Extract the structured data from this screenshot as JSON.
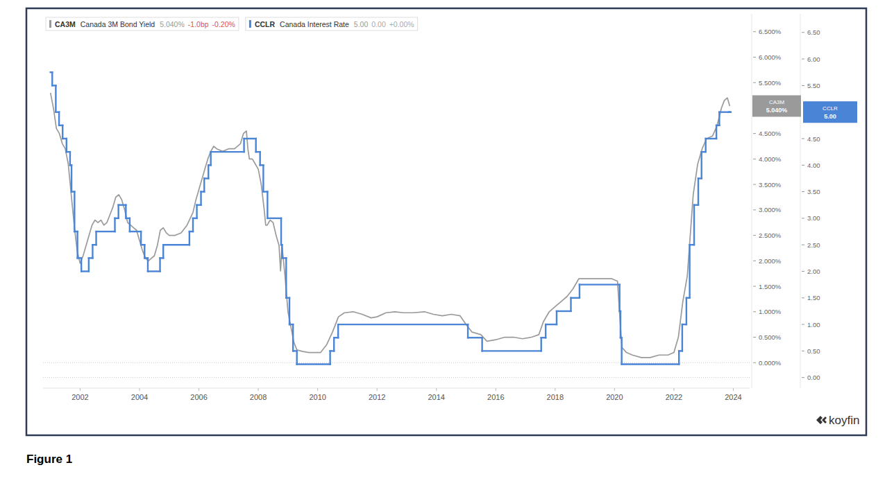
{
  "chart_data": {
    "type": "line",
    "caption": "Figure 1",
    "watermark": "koyfin",
    "legend": "upper left",
    "grid": false,
    "xlim": [
      2000.75,
      2024.55
    ],
    "xticks": [
      2002,
      2004,
      2006,
      2008,
      2010,
      2012,
      2014,
      2016,
      2018,
      2020,
      2022,
      2024
    ],
    "ylim": [
      -0.5,
      6.85
    ],
    "yticks": [
      {
        "value": 0,
        "label": "0.000%"
      },
      {
        "value": 0.5,
        "label": "0.500%"
      },
      {
        "value": 1,
        "label": "1.000%"
      },
      {
        "value": 1.5,
        "label": "1.500%"
      },
      {
        "value": 2,
        "label": "2.000%"
      },
      {
        "value": 2.5,
        "label": "2.500%"
      },
      {
        "value": 3,
        "label": "3.000%"
      },
      {
        "value": 3.5,
        "label": "3.500%"
      },
      {
        "value": 4,
        "label": "4.000%"
      },
      {
        "value": 4.5,
        "label": "4.500%"
      },
      {
        "value": 5.5,
        "label": "5.500%"
      },
      {
        "value": 6,
        "label": "6.000%"
      },
      {
        "value": 6.5,
        "label": "6.500%"
      }
    ],
    "y2lim": [
      -0.2,
      6.85
    ],
    "y2ticks": [
      {
        "value": 0,
        "label": "0.00"
      },
      {
        "value": 0.5,
        "label": "0.50"
      },
      {
        "value": 1,
        "label": "1.00"
      },
      {
        "value": 1.5,
        "label": "1.50"
      },
      {
        "value": 2,
        "label": "2.00"
      },
      {
        "value": 2.5,
        "label": "2.50"
      },
      {
        "value": 3,
        "label": "3.00"
      },
      {
        "value": 3.5,
        "label": "3.50"
      },
      {
        "value": 4,
        "label": "4.00"
      },
      {
        "value": 4.5,
        "label": "4.50"
      },
      {
        "value": 5.5,
        "label": "5.50"
      },
      {
        "value": 6,
        "label": "6.00"
      },
      {
        "value": 6.5,
        "label": "6.50"
      }
    ],
    "series": [
      {
        "name": "Canada 3M Bond Yield",
        "ticker": "CA3M",
        "last_label": "5.040%",
        "change_label": "-1.0bp",
        "change_pct_label": "-0.20%",
        "color": "#9a9a9a",
        "axis": "y",
        "line_style": "solid",
        "x": [
          2001.0,
          2001.1,
          2001.2,
          2001.3,
          2001.4,
          2001.5,
          2001.6,
          2001.7,
          2001.8,
          2001.9,
          2002.0,
          2002.1,
          2002.2,
          2002.3,
          2002.4,
          2002.5,
          2002.6,
          2002.7,
          2002.8,
          2002.9,
          2003.0,
          2003.1,
          2003.2,
          2003.3,
          2003.4,
          2003.5,
          2003.6,
          2003.7,
          2003.8,
          2003.9,
          2004.0,
          2004.1,
          2004.2,
          2004.3,
          2004.4,
          2004.5,
          2004.6,
          2004.7,
          2004.8,
          2004.9,
          2005.0,
          2005.2,
          2005.4,
          2005.6,
          2005.8,
          2005.9,
          2006.0,
          2006.1,
          2006.2,
          2006.3,
          2006.4,
          2006.5,
          2006.6,
          2006.8,
          2007.0,
          2007.2,
          2007.4,
          2007.5,
          2007.6,
          2007.65,
          2007.7,
          2007.8,
          2007.9,
          2008.0,
          2008.1,
          2008.2,
          2008.25,
          2008.3,
          2008.4,
          2008.5,
          2008.6,
          2008.7,
          2008.75,
          2008.8,
          2008.9,
          2009.0,
          2009.1,
          2009.2,
          2009.3,
          2009.5,
          2009.7,
          2009.9,
          2010.1,
          2010.3,
          2010.5,
          2010.7,
          2010.9,
          2011.2,
          2011.5,
          2011.8,
          2012.0,
          2012.3,
          2012.6,
          2012.9,
          2013.2,
          2013.6,
          2013.9,
          2014.2,
          2014.5,
          2014.8,
          2015.0,
          2015.2,
          2015.5,
          2015.7,
          2016.0,
          2016.3,
          2016.6,
          2016.9,
          2017.2,
          2017.45,
          2017.6,
          2017.8,
          2018.0,
          2018.2,
          2018.4,
          2018.6,
          2018.8,
          2019.0,
          2019.3,
          2019.6,
          2019.9,
          2020.1,
          2020.2,
          2020.25,
          2020.4,
          2020.6,
          2020.9,
          2021.2,
          2021.5,
          2021.8,
          2022.0,
          2022.15,
          2022.3,
          2022.45,
          2022.55,
          2022.65,
          2022.8,
          2022.95,
          2023.1,
          2023.3,
          2023.45,
          2023.6,
          2023.7,
          2023.8,
          2023.88
        ],
        "values": [
          5.3,
          5.0,
          4.6,
          4.5,
          4.3,
          4.2,
          3.9,
          3.3,
          2.7,
          2.2,
          1.95,
          2.1,
          2.3,
          2.5,
          2.7,
          2.8,
          2.75,
          2.8,
          2.7,
          2.75,
          2.9,
          3.05,
          3.25,
          3.3,
          3.2,
          3.0,
          2.75,
          2.7,
          2.65,
          2.6,
          2.4,
          2.2,
          2.05,
          2.0,
          2.05,
          2.1,
          2.3,
          2.6,
          2.65,
          2.55,
          2.5,
          2.5,
          2.55,
          2.7,
          2.95,
          3.2,
          3.4,
          3.6,
          3.8,
          4.0,
          4.15,
          4.25,
          4.2,
          4.15,
          4.2,
          4.2,
          4.3,
          4.5,
          4.55,
          4.2,
          4.0,
          4.0,
          3.9,
          3.8,
          3.5,
          3.0,
          2.7,
          2.7,
          2.8,
          2.75,
          2.5,
          2.3,
          1.8,
          2.3,
          1.7,
          1.0,
          0.7,
          0.4,
          0.25,
          0.22,
          0.2,
          0.2,
          0.2,
          0.35,
          0.6,
          0.9,
          0.98,
          1.0,
          0.95,
          0.88,
          0.9,
          0.98,
          1.0,
          0.98,
          0.98,
          1.0,
          0.95,
          0.92,
          0.95,
          0.92,
          0.75,
          0.6,
          0.55,
          0.42,
          0.45,
          0.5,
          0.5,
          0.47,
          0.5,
          0.55,
          0.8,
          1.0,
          1.1,
          1.2,
          1.3,
          1.45,
          1.65,
          1.65,
          1.65,
          1.65,
          1.65,
          1.6,
          0.7,
          0.3,
          0.2,
          0.15,
          0.1,
          0.1,
          0.15,
          0.15,
          0.2,
          0.5,
          1.2,
          1.7,
          2.5,
          3.3,
          3.9,
          4.2,
          4.4,
          4.45,
          4.65,
          5.0,
          5.15,
          5.2,
          5.04
        ]
      },
      {
        "name": "Canada Interest Rate",
        "ticker": "CCLR",
        "last_label": "5.00",
        "change_label": "0.00",
        "change_pct_label": "+0.00%",
        "color": "#4a84d6",
        "axis": "y2",
        "line_style": "step",
        "x": [
          2001.0,
          2001.06,
          2001.18,
          2001.29,
          2001.41,
          2001.54,
          2001.66,
          2001.71,
          2001.81,
          2001.91,
          2002.04,
          2002.29,
          2002.42,
          2002.54,
          2003.17,
          2003.29,
          2003.54,
          2003.67,
          2004.05,
          2004.17,
          2004.28,
          2004.69,
          2004.8,
          2005.68,
          2005.8,
          2005.93,
          2006.07,
          2006.18,
          2006.32,
          2006.4,
          2007.52,
          2007.92,
          2008.06,
          2008.17,
          2008.31,
          2008.77,
          2008.8,
          2008.94,
          2009.05,
          2009.17,
          2009.3,
          2010.42,
          2010.55,
          2010.69,
          2015.06,
          2015.54,
          2017.53,
          2017.68,
          2018.05,
          2018.53,
          2018.82,
          2020.17,
          2020.2,
          2020.24,
          2022.17,
          2022.28,
          2022.42,
          2022.53,
          2022.68,
          2022.82,
          2022.93,
          2023.07,
          2023.43,
          2023.53,
          2023.88
        ],
        "values": [
          5.75,
          5.5,
          5.0,
          4.75,
          4.5,
          4.25,
          4.0,
          3.5,
          2.75,
          2.25,
          2.0,
          2.25,
          2.5,
          2.75,
          3.0,
          3.25,
          3.0,
          2.75,
          2.5,
          2.25,
          2.0,
          2.25,
          2.5,
          2.75,
          3.0,
          3.25,
          3.5,
          3.75,
          4.0,
          4.25,
          4.5,
          4.25,
          4.0,
          3.5,
          3.0,
          2.5,
          2.25,
          1.5,
          1.0,
          0.5,
          0.25,
          0.5,
          0.75,
          1.0,
          0.75,
          0.5,
          0.75,
          1.0,
          1.25,
          1.5,
          1.75,
          1.25,
          0.75,
          0.25,
          0.5,
          1.0,
          1.5,
          2.5,
          3.25,
          3.75,
          4.25,
          4.5,
          4.75,
          5.0,
          5.0
        ]
      }
    ]
  }
}
